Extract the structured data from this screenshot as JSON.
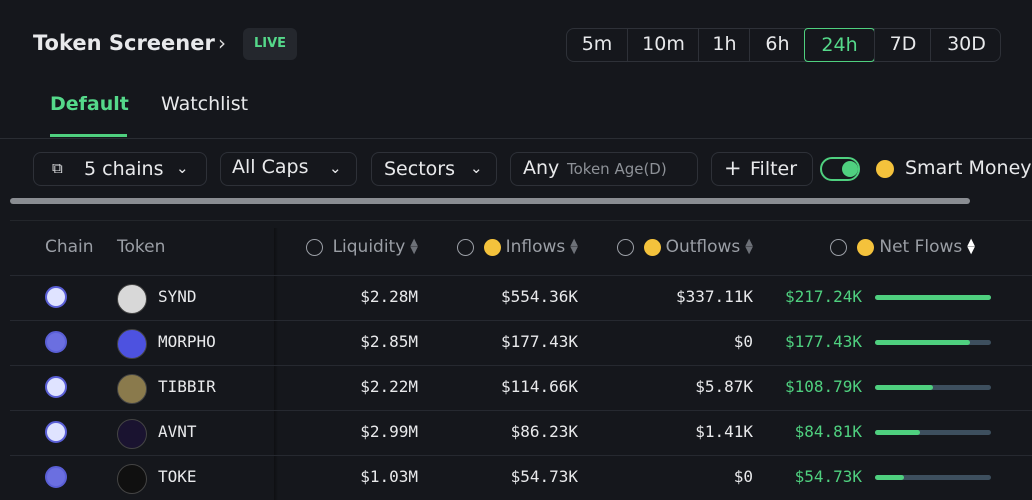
{
  "header": {
    "title": "Token Screener",
    "badge": "LIVE",
    "timeframes": [
      "5m",
      "10m",
      "1h",
      "6h",
      "24h",
      "7D",
      "30D"
    ],
    "active_timeframe": 4
  },
  "tabs": {
    "items": [
      "Default",
      "Watchlist"
    ],
    "active": 0
  },
  "filters": {
    "chains": "5 chains",
    "caps": "All Caps",
    "sectors": "Sectors",
    "age_value": "Any",
    "age_label": "Token Age(D)",
    "filter": "Filter",
    "smart_money": "Smart Money"
  },
  "table": {
    "columns": [
      "Chain",
      "Token",
      "Liquidity",
      "Inflows",
      "Outflows",
      "Net Flows"
    ],
    "rows": [
      {
        "token": "SYND",
        "liquidity": "$2.28M",
        "inflows": "$554.36K",
        "outflows": "$337.11K",
        "net_flow": {
          "value": 217240,
          "label": "$217.24K"
        }
      },
      {
        "token": "MORPHO",
        "liquidity": "$2.85M",
        "inflows": "$177.43K",
        "outflows": "$0",
        "net_flow": {
          "value": 177430,
          "label": "$177.43K"
        }
      },
      {
        "token": "TIBBIR",
        "liquidity": "$2.22M",
        "inflows": "$114.66K",
        "outflows": "$5.87K",
        "net_flow": {
          "value": 108790,
          "label": "$108.79K"
        }
      },
      {
        "token": "AVNT",
        "liquidity": "$2.99M",
        "inflows": "$86.23K",
        "outflows": "$1.41K",
        "net_flow": {
          "value": 84810,
          "label": "$84.81K"
        }
      },
      {
        "token": "TOKE",
        "liquidity": "$1.03M",
        "inflows": "$54.73K",
        "outflows": "$0",
        "net_flow": {
          "value": 54730,
          "label": "$54.73K"
        }
      }
    ]
  }
}
